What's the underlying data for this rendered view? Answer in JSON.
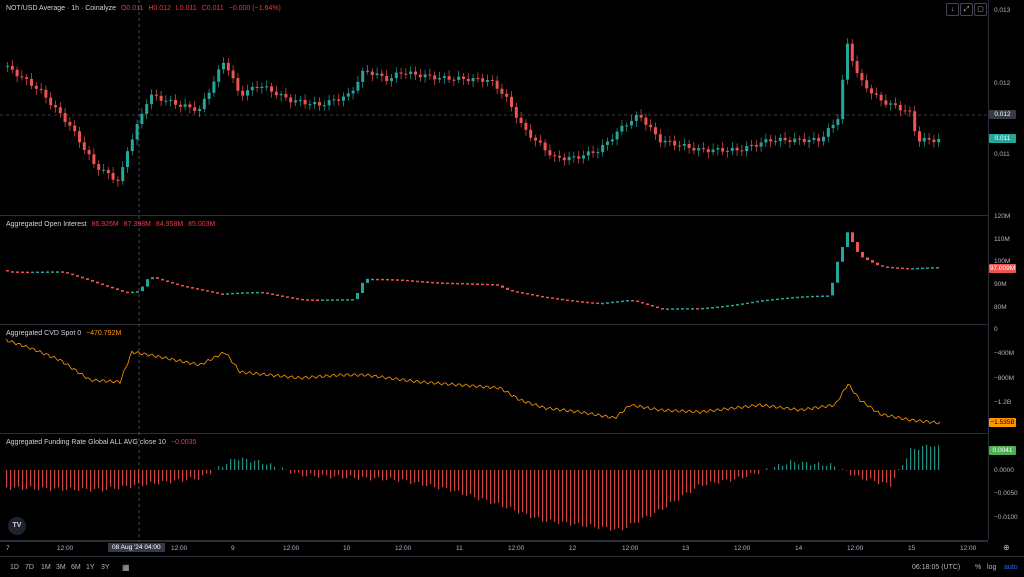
{
  "main": {
    "title": "NOT/USD Average · 1h · Coinalyze",
    "o": "O0.011",
    "h": "H0.012",
    "l": "L0.011",
    "c": "C0.011",
    "chg": "−0.000 (−1.64%)",
    "yticks": [
      "0.013",
      "0.012",
      "0.011"
    ],
    "crosshair_tag": "0.012",
    "last_tag": "0.011",
    "colors": {
      "up": "#26a69a",
      "down": "#ef5350"
    }
  },
  "oi": {
    "title": "Aggregated Open Interest",
    "values": [
      "86.926M",
      "87.398M",
      "84.958M",
      "85.003M"
    ],
    "yticks": [
      "120M",
      "110M",
      "100M",
      "90M",
      "80M"
    ],
    "last_tag": "97.009M"
  },
  "cvd": {
    "title": "Aggregated CVD Spot 0",
    "value": "−470.792M",
    "yticks": [
      "0",
      "−400M",
      "−800M",
      "−1.2B"
    ],
    "last_tag": "−1.535B",
    "color": "#ff9800"
  },
  "funding": {
    "title": "Aggregated Funding Rate Global ALL AVG close 10",
    "value": "−0.0035",
    "yticks": [
      "0.0000",
      "−0.0050",
      "−0.0100"
    ],
    "last_tag": "0.0041"
  },
  "xaxis": {
    "labels": [
      "7",
      "12:00",
      "12:00",
      "9",
      "12:00",
      "10",
      "12:00",
      "11",
      "12:00",
      "12",
      "12:00",
      "13",
      "12:00",
      "14",
      "12:00",
      "15",
      "12:00"
    ],
    "crosshair_label": "08 Aug '24  04:00"
  },
  "bottom": {
    "ranges": [
      "1D",
      "7D",
      "1M",
      "3M",
      "6M",
      "1Y",
      "3Y"
    ],
    "time": "06:18:05 (UTC)",
    "pct": "%",
    "log": "log",
    "auto": "auto"
  },
  "logo": "TV"
}
